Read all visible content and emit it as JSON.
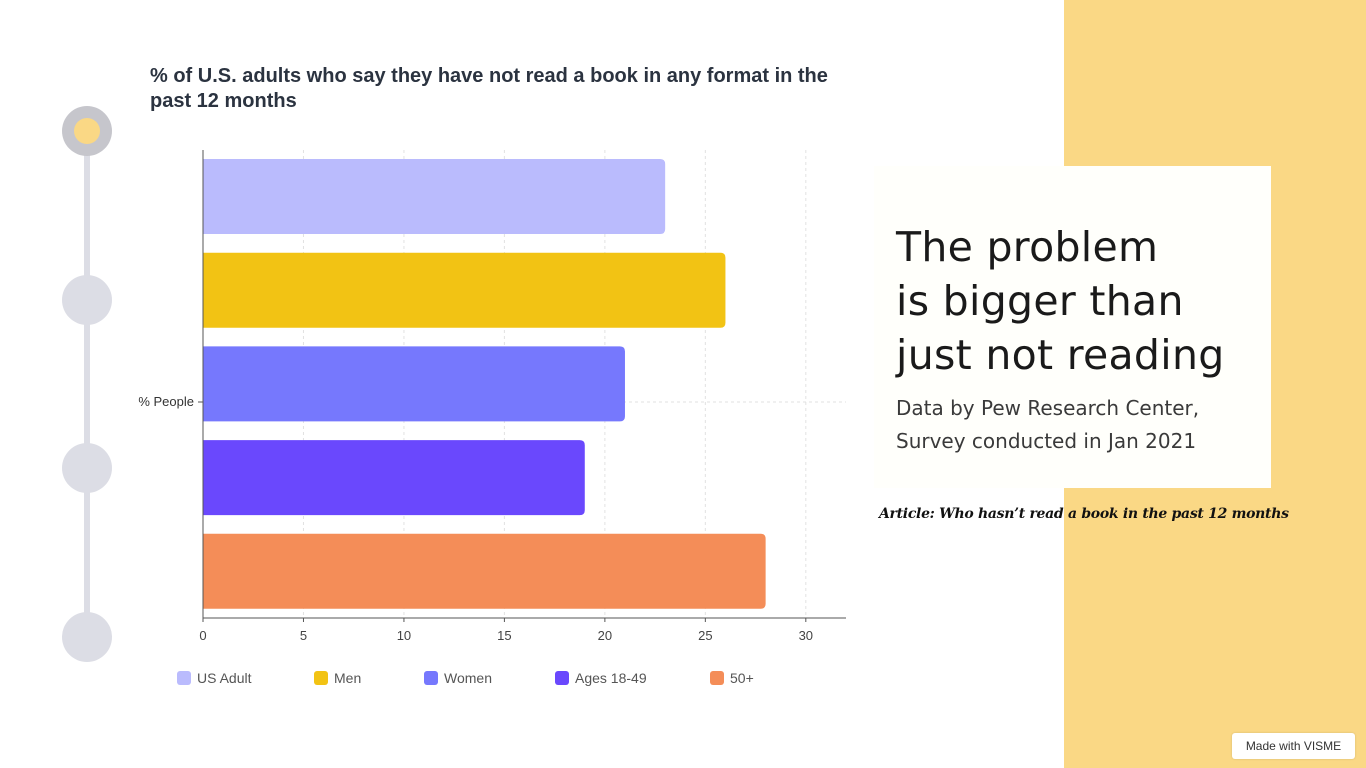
{
  "chart_data": {
    "type": "bar",
    "orientation": "horizontal",
    "title": "% of U.S. adults who say they have not read a book in any format in the past 12 months",
    "category_label": "% People",
    "xlabel": "",
    "xlim": [
      0,
      32
    ],
    "x_ticks": [
      0,
      5,
      10,
      15,
      20,
      25,
      30
    ],
    "series": [
      {
        "name": "US Adult",
        "value": 23,
        "color": "#babbfd"
      },
      {
        "name": "Men",
        "value": 26,
        "color": "#f2c314"
      },
      {
        "name": "Women",
        "value": 21,
        "color": "#7678fd"
      },
      {
        "name": "Ages 18-49",
        "value": 19,
        "color": "#6a48fd"
      },
      {
        "name": "50+",
        "value": 28,
        "color": "#f48d58"
      }
    ],
    "grid": true,
    "legend": "bottom"
  },
  "card": {
    "heading_lines": [
      "The problem",
      "is bigger than",
      "just not reading"
    ],
    "sub_lines": [
      "Data by Pew Research Center,",
      "Survey conducted in Jan 2021"
    ]
  },
  "article_text": "Article: Who hasn’t read a book in the past 12 months",
  "badge_text": "Made with VISME"
}
